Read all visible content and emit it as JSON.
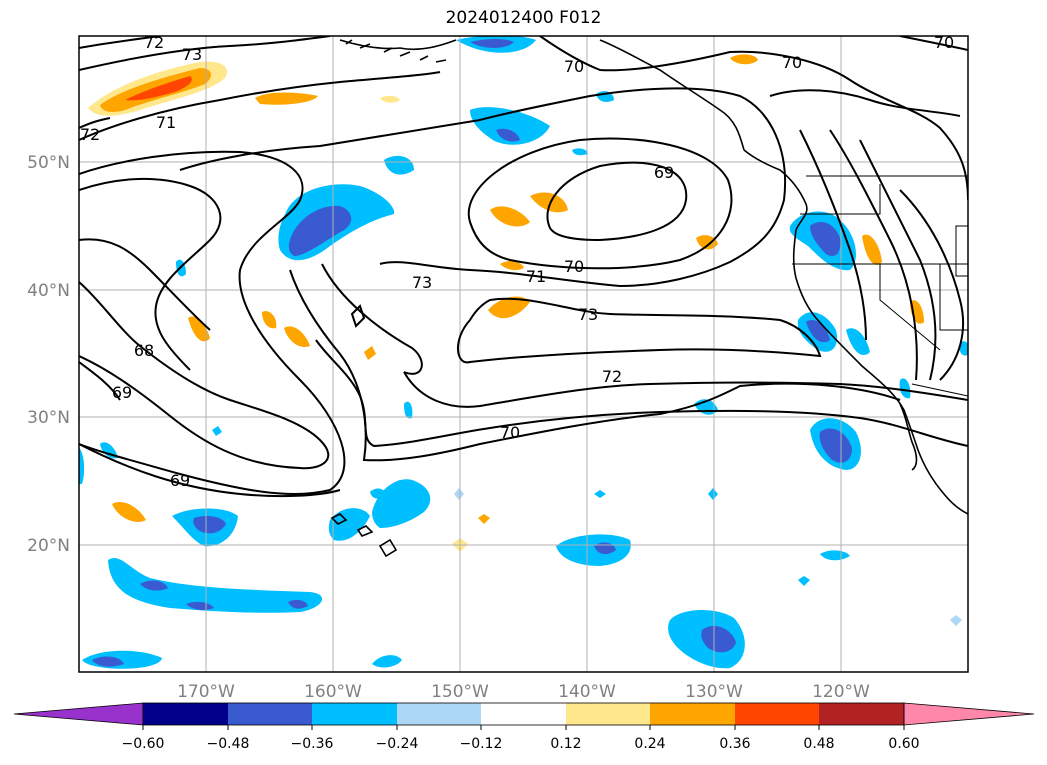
{
  "title": "2024012400 F012",
  "lat_labels": [
    "50°N",
    "40°N",
    "30°N",
    "20°N"
  ],
  "lon_labels": [
    "170°W",
    "160°W",
    "150°W",
    "140°W",
    "130°W",
    "120°W"
  ],
  "contour_labels": [
    "72",
    "73",
    "71",
    "72",
    "70",
    "70",
    "70",
    "69",
    "70",
    "71",
    "73",
    "73",
    "68",
    "69",
    "72",
    "70",
    "69"
  ],
  "colorbar": {
    "tick_labels": [
      "−0.60",
      "−0.48",
      "−0.36",
      "−0.24",
      "−0.12",
      "0.12",
      "0.24",
      "0.36",
      "0.48",
      "0.60"
    ],
    "colors": [
      "#9932cc",
      "#00008b",
      "#3a5bd0",
      "#00bfff",
      "#add8f5",
      "#ffffff",
      "#ffe78c",
      "#ffa500",
      "#ff4500",
      "#b22222",
      "#ff88aa"
    ]
  },
  "fill_colors": {
    "dark_blue": "#3a5bd0",
    "mid_blue": "#00bfff",
    "light_blue": "#add8f5",
    "navy": "#00008b",
    "yellow": "#ffe78c",
    "orange": "#ffa500",
    "red_orange": "#ff4500"
  }
}
